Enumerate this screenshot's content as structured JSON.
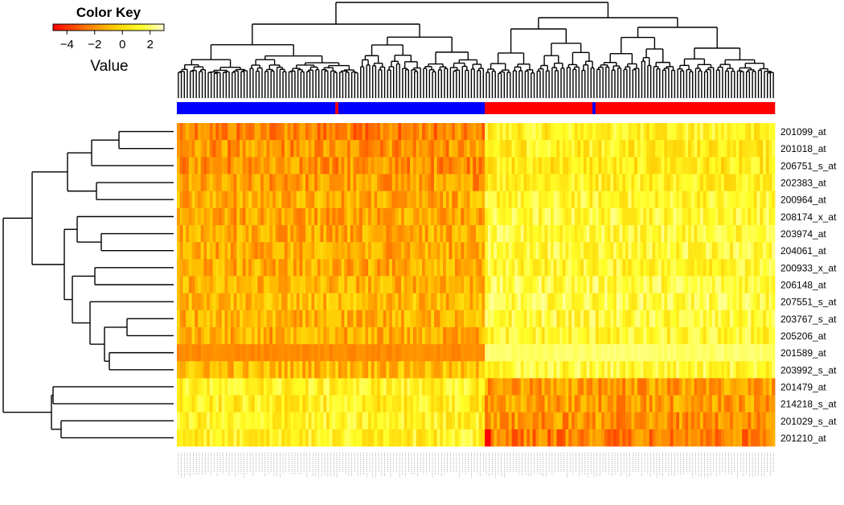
{
  "chart_data": {
    "type": "heatmap",
    "color_key": {
      "title": "Color Key",
      "value_label": "Value",
      "ticks": [
        -4,
        -2,
        0,
        2
      ],
      "tick_labels": [
        "−4",
        "−2",
        "0",
        "2"
      ],
      "range": [
        -5,
        3
      ],
      "colors": [
        "#ff0000",
        "#ff8000",
        "#ffd000",
        "#ffff40",
        "#ffffe0"
      ]
    },
    "rows": [
      "201099_at",
      "201018_at",
      "206751_s_at",
      "202383_at",
      "200964_at",
      "208174_x_at",
      "203974_at",
      "204061_at",
      "200933_x_at",
      "206148_at",
      "207551_s_at",
      "203767_s_at",
      "205206_at",
      "201589_at",
      "203992_s_at",
      "201479_at",
      "214218_s_at",
      "201029_s_at",
      "201210_at"
    ],
    "n_columns": 200,
    "column_groups": [
      {
        "color": "#0000ff",
        "from": 0,
        "to": 53
      },
      {
        "color": "#ff0000",
        "from": 53,
        "to": 54
      },
      {
        "color": "#0000ff",
        "from": 54,
        "to": 103
      },
      {
        "color": "#ff0000",
        "from": 103,
        "to": 139
      },
      {
        "color": "#0000ff",
        "from": 139,
        "to": 140
      },
      {
        "color": "#ff0000",
        "from": 140,
        "to": 200
      }
    ],
    "row_group_means": {
      "left_block": [
        -2.6,
        -2.2,
        -2.2,
        -2.0,
        -1.6,
        -1.8,
        -1.6,
        -1.6,
        -1.6,
        -1.4,
        -1.2,
        -1.4,
        -1.6,
        -2.4,
        -1.2,
        0.6,
        0.4,
        0.6,
        0.6
      ],
      "right_block": [
        0.6,
        0.4,
        0.2,
        0.6,
        0.8,
        1.0,
        1.0,
        1.0,
        0.8,
        1.2,
        1.2,
        1.0,
        0.8,
        1.8,
        1.0,
        -2.0,
        -2.0,
        -2.2,
        -2.6
      ]
    }
  }
}
